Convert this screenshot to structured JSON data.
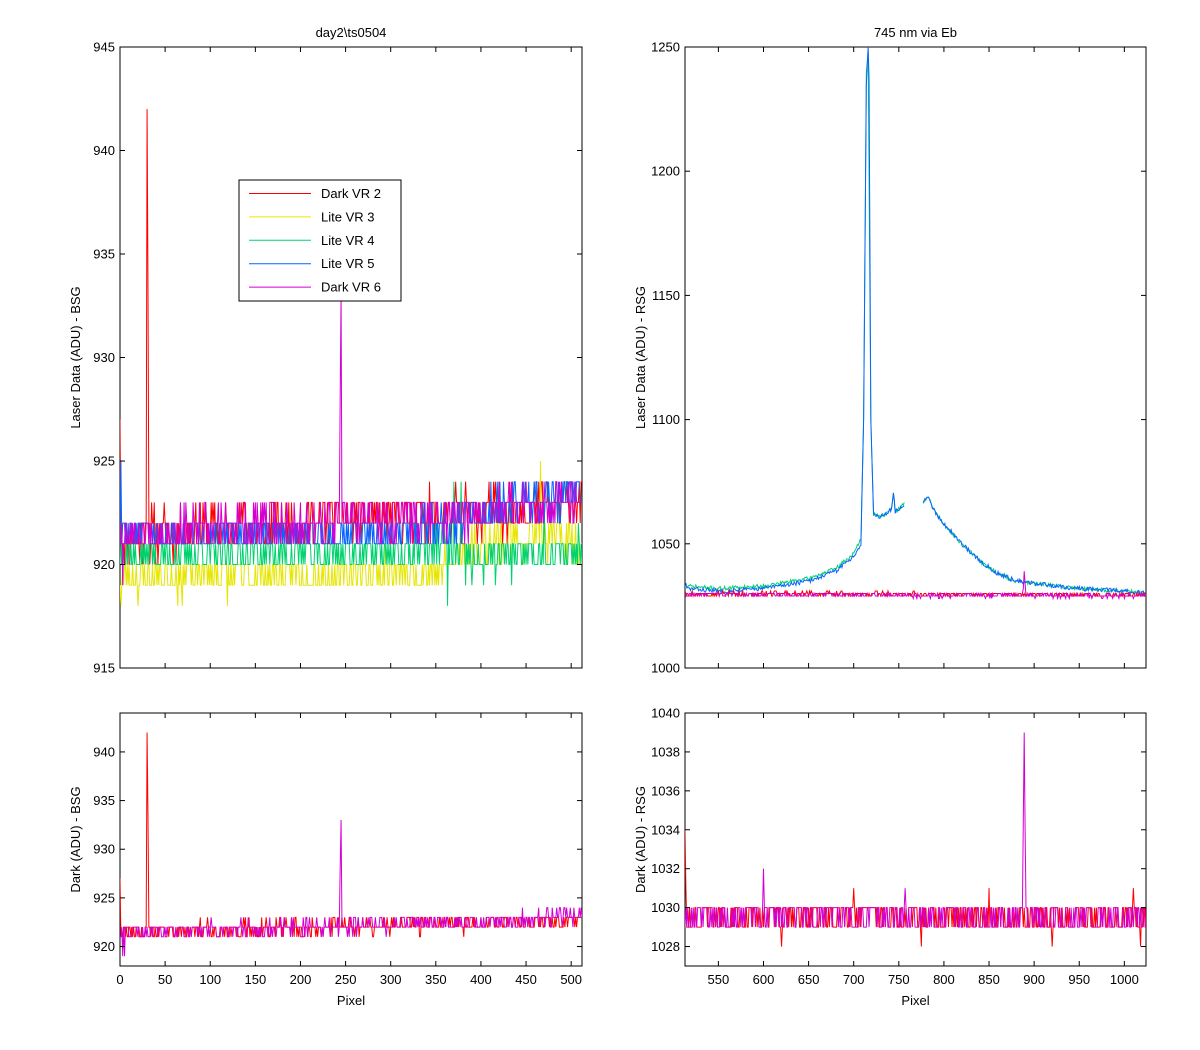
{
  "figure": {
    "background": "#ffffff",
    "series_colors": {
      "Dark VR 2": "#ff0000",
      "Lite VR 3": "#e6e600",
      "Lite VR 4": "#00d26e",
      "Lite VR 5": "#0a64ff",
      "Dark VR 6": "#d200d2"
    }
  },
  "chart_data": [
    {
      "id": "top-left",
      "type": "line",
      "title": "day2\\ts0504",
      "xlabel": "",
      "ylabel": "Laser Data (ADU) - BSG",
      "xlim": [
        0,
        512
      ],
      "ylim": [
        915,
        945
      ],
      "xticks": [
        0,
        50,
        100,
        150,
        200,
        250,
        300,
        350,
        400,
        450,
        500
      ],
      "xtick_labels_shown": false,
      "yticks": [
        915,
        920,
        925,
        930,
        935,
        940,
        945
      ],
      "grid": false,
      "legend": {
        "position": "upper-left-center",
        "entries": [
          "Dark VR 2",
          "Lite VR 3",
          "Lite VR 4",
          "Lite VR 5",
          "Dark VR 6"
        ]
      },
      "series": [
        {
          "name": "Dark VR 2",
          "color": "#ff0000",
          "kind": "noise",
          "seed": 11,
          "x": [
            0,
            512
          ],
          "levels": [
            [
              0,
              921
            ],
            [
              30,
              921.5
            ],
            [
              200,
              922
            ],
            [
              400,
              922.5
            ],
            [
              512,
              923
            ]
          ],
          "amp": 1.2,
          "spikes": [
            [
              0,
              927
            ],
            [
              1,
              921
            ],
            [
              29,
              922
            ],
            [
              30,
              942
            ],
            [
              31,
              933.5
            ],
            [
              32,
              922
            ],
            [
              89,
              923
            ],
            [
              137,
              923
            ],
            [
              213,
              923
            ],
            [
              238,
              923
            ]
          ]
        },
        {
          "name": "Lite VR 3",
          "color": "#e6e600",
          "kind": "noise",
          "seed": 23,
          "x": [
            0,
            512
          ],
          "levels": [
            [
              0,
              919.4
            ],
            [
              350,
              919.6
            ],
            [
              400,
              921
            ],
            [
              460,
              921.5
            ],
            [
              512,
              921
            ]
          ],
          "amp": 1.0,
          "spikes": [
            [
              1,
              918
            ],
            [
              466,
              925
            ],
            [
              470,
              922
            ]
          ]
        },
        {
          "name": "Lite VR 4",
          "color": "#00d26e",
          "kind": "noise",
          "seed": 37,
          "x": [
            0,
            512
          ],
          "levels": [
            [
              0,
              920.5
            ],
            [
              300,
              920.5
            ],
            [
              360,
              921
            ],
            [
              380,
              920
            ],
            [
              420,
              920.3
            ],
            [
              512,
              920.8
            ]
          ],
          "amp": 1.0,
          "spikes": [
            [
              363,
              918
            ],
            [
              370,
              924
            ],
            [
              378,
              924
            ],
            [
              470,
              923
            ]
          ]
        },
        {
          "name": "Lite VR 5",
          "color": "#0a64ff",
          "kind": "noise",
          "seed": 51,
          "x": [
            0,
            512
          ],
          "levels": [
            [
              0,
              921.5
            ],
            [
              300,
              921.5
            ],
            [
              360,
              922
            ],
            [
              400,
              922.5
            ],
            [
              450,
              923
            ],
            [
              512,
              923.5
            ]
          ],
          "amp": 1.0,
          "spikes": [
            [
              1,
              925
            ],
            [
              2,
              921
            ]
          ]
        },
        {
          "name": "Dark VR 6",
          "color": "#d200d2",
          "kind": "noise",
          "seed": 67,
          "x": [
            0,
            512
          ],
          "levels": [
            [
              0,
              921.5
            ],
            [
              200,
              922
            ],
            [
              400,
              922.5
            ],
            [
              512,
              923.3
            ]
          ],
          "amp": 1.0,
          "spikes": [
            [
              243,
              922
            ],
            [
              244,
              928
            ],
            [
              245,
              933
            ],
            [
              246,
              922
            ],
            [
              3,
              919
            ]
          ]
        }
      ]
    },
    {
      "id": "top-right",
      "type": "line",
      "title": "745 nm via Eb",
      "xlabel": "",
      "ylabel": "Laser Data (ADU) - RSG",
      "xlim": [
        513,
        1024
      ],
      "ylim": [
        1000,
        1250
      ],
      "xticks": [
        550,
        600,
        650,
        700,
        750,
        800,
        850,
        900,
        950,
        1000
      ],
      "xtick_labels_shown": false,
      "yticks": [
        1000,
        1050,
        1100,
        1150,
        1200,
        1250
      ],
      "grid": false,
      "series": [
        {
          "name": "Lite VR 4",
          "color": "#00d26e",
          "kind": "peak",
          "seed": 71,
          "x": [
            513,
            1024
          ],
          "gaps": [
            [
              757,
              776
            ]
          ],
          "amp": 0.8,
          "profile": [
            [
              513,
              1033
            ],
            [
              550,
              1032
            ],
            [
              600,
              1033
            ],
            [
              650,
              1036
            ],
            [
              680,
              1040
            ],
            [
              700,
              1046
            ],
            [
              708,
              1052
            ],
            [
              711,
              1100
            ],
            [
              714,
              1240
            ],
            [
              716,
              1248
            ],
            [
              719,
              1100
            ],
            [
              722,
              1062
            ],
            [
              728,
              1061
            ],
            [
              735,
              1062
            ],
            [
              742,
              1064
            ],
            [
              744,
              1071
            ],
            [
              746,
              1063
            ],
            [
              750,
              1064
            ],
            [
              756,
              1066
            ],
            [
              777,
              1067
            ],
            [
              782,
              1069
            ],
            [
              790,
              1063
            ],
            [
              800,
              1058
            ],
            [
              820,
              1050
            ],
            [
              840,
              1043
            ],
            [
              860,
              1038
            ],
            [
              880,
              1035
            ],
            [
              900,
              1034
            ],
            [
              950,
              1032
            ],
            [
              1000,
              1031
            ],
            [
              1024,
              1030
            ]
          ]
        },
        {
          "name": "Lite VR 5",
          "color": "#0a64ff",
          "kind": "peak",
          "seed": 83,
          "x": [
            513,
            1024
          ],
          "gaps": [
            [
              757,
              776
            ]
          ],
          "amp": 0.9,
          "profile": [
            [
              513,
              1035
            ],
            [
              515,
              1032
            ],
            [
              550,
              1031
            ],
            [
              600,
              1032
            ],
            [
              650,
              1035
            ],
            [
              680,
              1039
            ],
            [
              700,
              1045
            ],
            [
              708,
              1050
            ],
            [
              711,
              1100
            ],
            [
              714,
              1235
            ],
            [
              716,
              1250
            ],
            [
              717,
              1237
            ],
            [
              719,
              1100
            ],
            [
              722,
              1062
            ],
            [
              728,
              1061
            ],
            [
              735,
              1062
            ],
            [
              742,
              1064
            ],
            [
              744,
              1071
            ],
            [
              746,
              1063
            ],
            [
              750,
              1064
            ],
            [
              756,
              1066
            ],
            [
              777,
              1067
            ],
            [
              782,
              1069
            ],
            [
              790,
              1063
            ],
            [
              800,
              1058
            ],
            [
              820,
              1050
            ],
            [
              840,
              1043
            ],
            [
              860,
              1038
            ],
            [
              880,
              1035
            ],
            [
              900,
              1034
            ],
            [
              950,
              1032
            ],
            [
              1000,
              1031
            ],
            [
              1024,
              1030
            ]
          ]
        },
        {
          "name": "Dark VR 2",
          "color": "#ff0000",
          "kind": "noise",
          "seed": 97,
          "x": [
            513,
            1024
          ],
          "levels": [
            [
              513,
              1030
            ],
            [
              1024,
              1029.5
            ]
          ],
          "amp": 0.8,
          "spikes": []
        },
        {
          "name": "Dark VR 6",
          "color": "#d200d2",
          "kind": "noise",
          "seed": 103,
          "x": [
            513,
            1024
          ],
          "levels": [
            [
              513,
              1029.5
            ],
            [
              1024,
              1029
            ]
          ],
          "amp": 0.8,
          "spikes": [
            [
              888,
              1032
            ],
            [
              889,
              1039
            ],
            [
              890,
              1034
            ],
            [
              891,
              1029
            ]
          ]
        }
      ]
    },
    {
      "id": "bottom-left",
      "type": "line",
      "title": "",
      "xlabel": "Pixel",
      "ylabel": "Dark (ADU) - BSG",
      "xlim": [
        0,
        512
      ],
      "ylim": [
        918,
        944
      ],
      "xticks": [
        0,
        50,
        100,
        150,
        200,
        250,
        300,
        350,
        400,
        450,
        500
      ],
      "xtick_labels_shown": true,
      "yticks": [
        920,
        925,
        930,
        935,
        940
      ],
      "grid": false,
      "series": [
        {
          "name": "Dark VR 2",
          "color": "#ff0000",
          "kind": "noise",
          "seed": 111,
          "x": [
            0,
            512
          ],
          "levels": [
            [
              0,
              921.5
            ],
            [
              200,
              922
            ],
            [
              400,
              922.3
            ],
            [
              512,
              922.8
            ]
          ],
          "amp": 0.8,
          "spikes": [
            [
              0,
              927
            ],
            [
              1,
              921
            ],
            [
              29,
              922
            ],
            [
              30,
              942
            ],
            [
              31,
              933.5
            ],
            [
              32,
              922
            ],
            [
              89,
              923
            ],
            [
              137,
              923
            ],
            [
              213,
              923
            ],
            [
              238,
              923
            ]
          ]
        },
        {
          "name": "Dark VR 6",
          "color": "#d200d2",
          "kind": "noise",
          "seed": 131,
          "x": [
            0,
            512
          ],
          "levels": [
            [
              0,
              921.5
            ],
            [
              200,
              922
            ],
            [
              400,
              922.5
            ],
            [
              512,
              923.3
            ]
          ],
          "amp": 0.8,
          "spikes": [
            [
              3,
              919
            ],
            [
              5,
              919
            ],
            [
              243,
              922
            ],
            [
              244,
              928
            ],
            [
              245,
              933
            ],
            [
              246,
              922
            ]
          ]
        }
      ]
    },
    {
      "id": "bottom-right",
      "type": "line",
      "title": "",
      "xlabel": "Pixel",
      "ylabel": "Dark (ADU) - RSG",
      "xlim": [
        513,
        1024
      ],
      "ylim": [
        1027,
        1040
      ],
      "xticks": [
        550,
        600,
        650,
        700,
        750,
        800,
        850,
        900,
        950,
        1000
      ],
      "xtick_labels_shown": true,
      "yticks": [
        1028,
        1030,
        1032,
        1034,
        1036,
        1038,
        1040
      ],
      "grid": false,
      "series": [
        {
          "name": "Dark VR 2",
          "color": "#ff0000",
          "kind": "noise",
          "seed": 141,
          "x": [
            513,
            1024
          ],
          "levels": [
            [
              513,
              1029.7
            ],
            [
              1024,
              1029.5
            ]
          ],
          "amp": 0.8,
          "spikes": [
            [
              513,
              1034
            ],
            [
              514,
              1031
            ],
            [
              620,
              1028
            ],
            [
              700,
              1031
            ],
            [
              775,
              1028
            ],
            [
              850,
              1031
            ],
            [
              920,
              1028
            ],
            [
              1010,
              1031
            ],
            [
              1018,
              1028
            ]
          ]
        },
        {
          "name": "Dark VR 6",
          "color": "#d200d2",
          "kind": "noise",
          "seed": 157,
          "x": [
            513,
            1024
          ],
          "levels": [
            [
              513,
              1029.6
            ],
            [
              1024,
              1029.5
            ]
          ],
          "amp": 0.8,
          "spikes": [
            [
              600,
              1032
            ],
            [
              601,
              1030
            ],
            [
              757,
              1031
            ],
            [
              887,
              1030
            ],
            [
              888,
              1034.5
            ],
            [
              889,
              1039
            ],
            [
              890,
              1034
            ],
            [
              891,
              1030
            ]
          ]
        }
      ]
    }
  ]
}
